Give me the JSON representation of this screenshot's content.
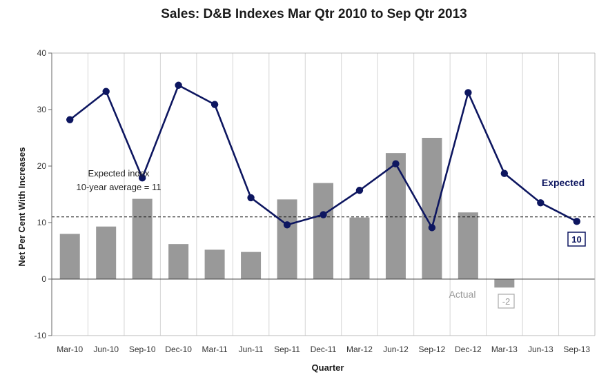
{
  "chart_data": {
    "type": "bar+line",
    "title": "Sales: D&B Indexes Mar Qtr 2010 to Sep Qtr 2013",
    "xlabel": "Quarter",
    "ylabel": "Net Per Cent With Increases",
    "ylim": [
      -10,
      40
    ],
    "yticks": [
      -10,
      0,
      10,
      20,
      30,
      40
    ],
    "categories": [
      "Mar-10",
      "Jun-10",
      "Sep-10",
      "Dec-10",
      "Mar-11",
      "Jun-11",
      "Sep-11",
      "Dec-11",
      "Mar-12",
      "Jun-12",
      "Sep-12",
      "Dec-12",
      "Mar-13",
      "Jun-13",
      "Sep-13"
    ],
    "series": [
      {
        "name": "Actual",
        "type": "bar",
        "color": "#999999",
        "values": [
          8,
          9.3,
          14.2,
          6.2,
          5.2,
          4.8,
          14.1,
          17,
          10.9,
          22.3,
          25,
          11.8,
          -1.5,
          null,
          null
        ]
      },
      {
        "name": "Expected",
        "type": "line",
        "color": "#0d1660",
        "values": [
          28.2,
          33.2,
          17.9,
          34.3,
          30.9,
          14.4,
          9.6,
          11.4,
          15.7,
          20.4,
          9.1,
          33,
          18.7,
          13.5,
          10.2
        ]
      }
    ],
    "reference_line": {
      "value": 11,
      "style": "dashed"
    },
    "annotations": {
      "avg_line1": "Expected index",
      "avg_line2": "10-year average = 11",
      "expected_label": "Expected",
      "actual_label": "Actual",
      "expected_last": "10",
      "actual_last": "-2"
    },
    "grid": "vertical"
  }
}
